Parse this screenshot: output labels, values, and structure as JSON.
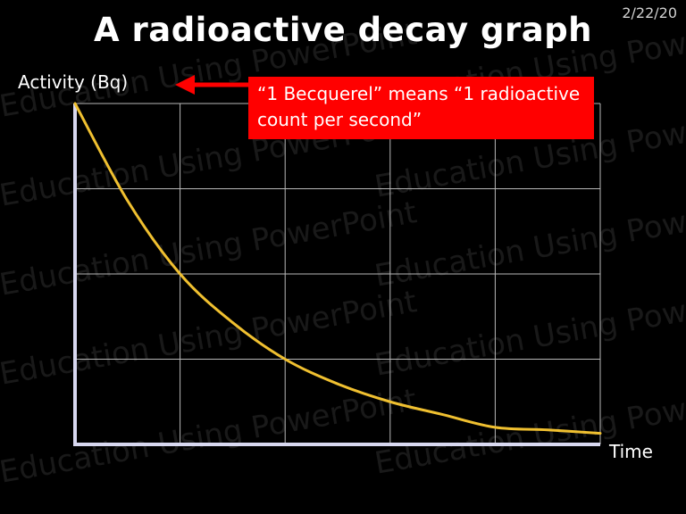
{
  "header": {
    "title": "A radioactive decay graph",
    "date": "2/22/20"
  },
  "watermark_text": "Education Using PowerPoint",
  "callout": {
    "text": "“1 Becquerel” means “1 radioactive count per second”",
    "background": "#ff0000"
  },
  "colors": {
    "background": "#000000",
    "curve": "#f0c030",
    "axes": "#d8d8f0",
    "grid": "#b8b8b8",
    "arrow": "#ff0000"
  },
  "chart_data": {
    "type": "line",
    "title": "A radioactive decay graph",
    "xlabel": "Time",
    "ylabel": "Activity (Bq)",
    "grid": true,
    "xlim": [
      0,
      5
    ],
    "ylim": [
      0,
      4
    ],
    "x_divisions": 5,
    "y_divisions": 4,
    "series": [
      {
        "values": [
          {
            "x": 0,
            "y": 4.0
          },
          {
            "x": 0.5,
            "y": 2.86
          },
          {
            "x": 1,
            "y": 2.0
          },
          {
            "x": 1.5,
            "y": 1.43
          },
          {
            "x": 2,
            "y": 1.0
          },
          {
            "x": 2.5,
            "y": 0.71
          },
          {
            "x": 3,
            "y": 0.5
          },
          {
            "x": 3.5,
            "y": 0.35
          },
          {
            "x": 4,
            "y": 0.2
          },
          {
            "x": 4.5,
            "y": 0.17
          },
          {
            "x": 5,
            "y": 0.13
          }
        ]
      }
    ]
  }
}
